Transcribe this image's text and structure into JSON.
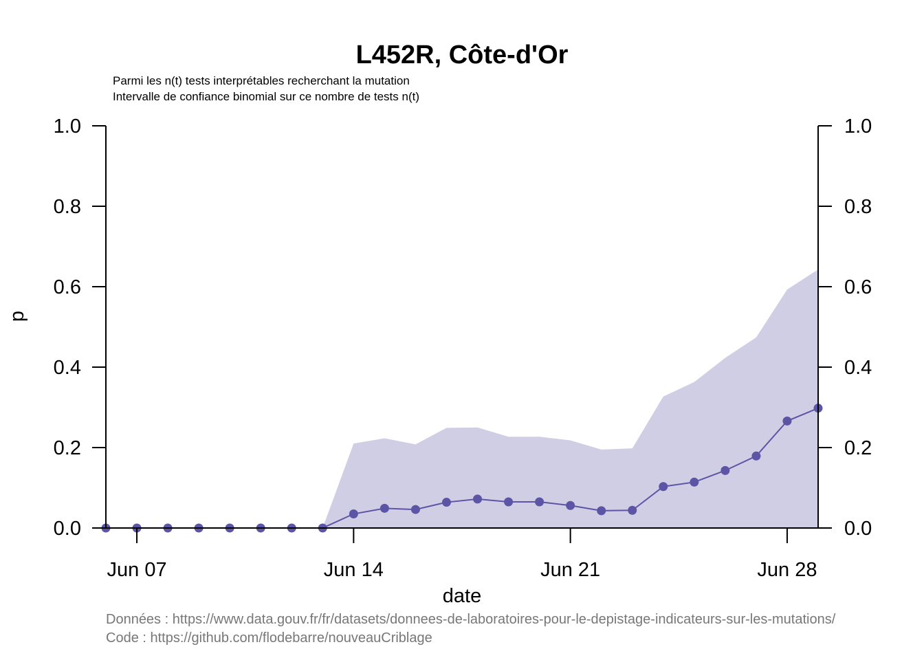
{
  "chart_data": {
    "type": "line",
    "title": "L452R, Côte-d'Or",
    "subtitle_lines": [
      "Parmi les n(t) tests interprétables recherchant la mutation",
      "Intervalle de confiance binomial sur ce nombre de tests n(t)"
    ],
    "xlabel": "date",
    "ylabel": "p",
    "x_tick_labels": [
      "Jun 07",
      "Jun 14",
      "Jun 21",
      "Jun 28"
    ],
    "x_tick_day_index": [
      1,
      8,
      15,
      22
    ],
    "y_ticks": [
      "0.0",
      "0.2",
      "0.4",
      "0.6",
      "0.8",
      "1.0"
    ],
    "ylim": [
      0,
      1
    ],
    "xlim_day_index": [
      0,
      23
    ],
    "series": [
      {
        "values": [
          0,
          0,
          0,
          0,
          0,
          0,
          0,
          0,
          0.035,
          0.049,
          0.046,
          0.064,
          0.072,
          0.065,
          0.065,
          0.056,
          0.043,
          0.044,
          0.103,
          0.114,
          0.143,
          0.179,
          0.266,
          0.298
        ],
        "ci_upper": [
          0,
          0,
          0,
          0,
          0,
          0,
          0,
          0,
          0.21,
          0.223,
          0.208,
          0.249,
          0.25,
          0.227,
          0.227,
          0.218,
          0.195,
          0.198,
          0.327,
          0.363,
          0.423,
          0.474,
          0.593,
          0.643
        ],
        "ci_lower": [
          0,
          0,
          0,
          0,
          0,
          0,
          0,
          0,
          0,
          0,
          0,
          0,
          0,
          0,
          0,
          0,
          0,
          0,
          0,
          0,
          0,
          0,
          0,
          0
        ]
      }
    ],
    "colors": {
      "line": "#5c55a6",
      "band": "#d0cee5"
    },
    "grid": false
  },
  "caption": {
    "data_line": "Données : https://www.data.gouv.fr/fr/datasets/donnees-de-laboratoires-pour-le-depistage-indicateurs-sur-les-mutations/",
    "code_line": "Code : https://github.com/flodebarre/nouveauCriblage"
  }
}
